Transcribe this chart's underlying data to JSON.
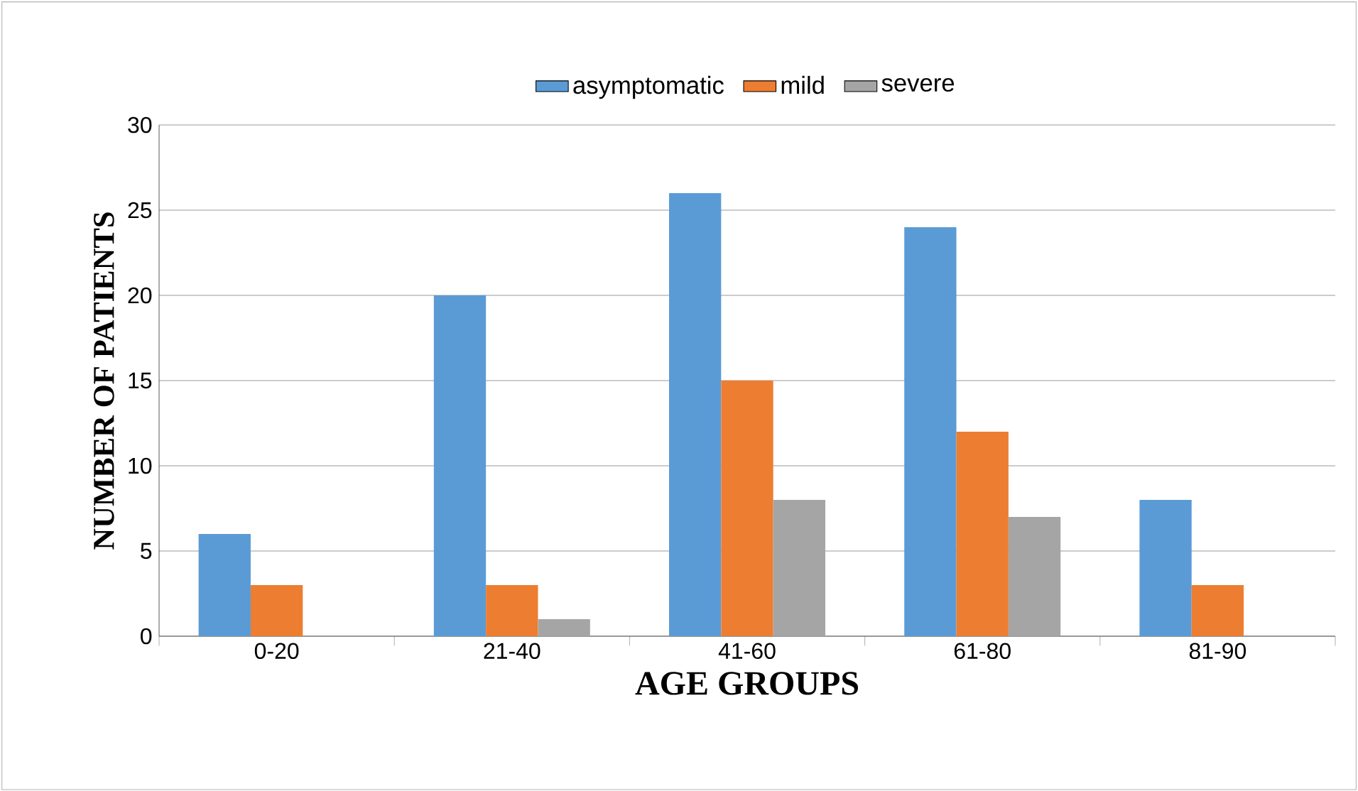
{
  "chart_data": {
    "type": "bar",
    "categories": [
      "0-20",
      "21-40",
      "41-60",
      "61-80",
      "81-90"
    ],
    "series": [
      {
        "name": "asymptomatic",
        "color": "#5b9bd5",
        "values": [
          6,
          20,
          26,
          24,
          8
        ]
      },
      {
        "name": "mild",
        "color": "#ed7d31",
        "values": [
          3,
          3,
          15,
          12,
          3
        ]
      },
      {
        "name": "severe",
        "color": "#a5a5a5",
        "values": [
          0,
          1,
          8,
          7,
          0
        ]
      }
    ],
    "xlabel": "AGE GROUPS",
    "ylabel": "NUMBER OF PATIENTS",
    "ylim": [
      0,
      30
    ],
    "yticks": [
      0,
      5,
      10,
      15,
      20,
      25,
      30
    ],
    "grid": "y",
    "legend": "top"
  }
}
